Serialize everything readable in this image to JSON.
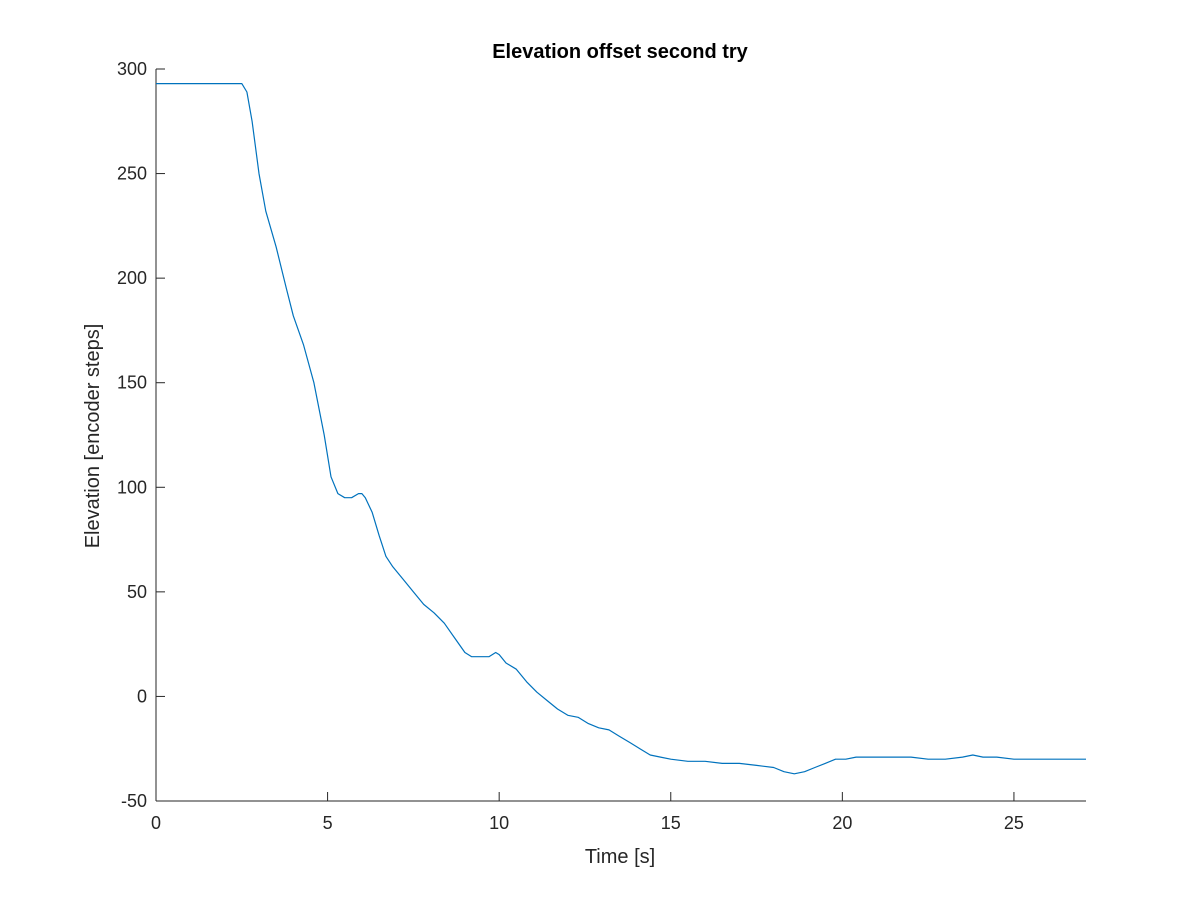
{
  "chart_data": {
    "type": "line",
    "title": "Elevation offset second try",
    "xlabel": "Time [s]",
    "ylabel": "Elevation [encoder steps]",
    "xlim": [
      0,
      27.1
    ],
    "ylim": [
      -50,
      300
    ],
    "xticks": [
      0,
      5,
      10,
      15,
      20,
      25
    ],
    "yticks": [
      -50,
      0,
      50,
      100,
      150,
      200,
      250,
      300
    ],
    "xtick_labels": [
      "0",
      "5",
      "10",
      "15",
      "20",
      "25"
    ],
    "ytick_labels": [
      "-50",
      "0",
      "50",
      "100",
      "150",
      "200",
      "250",
      "300"
    ],
    "grid": false,
    "line_color": "#0072BD",
    "series": [
      {
        "x": [
          0,
          2.5,
          2.65,
          2.8,
          3.0,
          3.2,
          3.5,
          3.8,
          4.0,
          4.3,
          4.6,
          4.9,
          5.1,
          5.3,
          5.5,
          5.7,
          5.9,
          6.0,
          6.1,
          6.3,
          6.5,
          6.7,
          6.9,
          7.2,
          7.5,
          7.8,
          8.1,
          8.4,
          8.7,
          9.0,
          9.2,
          9.5,
          9.7,
          9.9,
          10.0,
          10.2,
          10.5,
          10.8,
          11.1,
          11.4,
          11.7,
          12.0,
          12.3,
          12.6,
          12.9,
          13.2,
          13.5,
          13.8,
          14.1,
          14.4,
          14.7,
          15.0,
          15.5,
          16.0,
          16.5,
          17.0,
          17.5,
          18.0,
          18.3,
          18.6,
          18.9,
          19.2,
          19.5,
          19.8,
          20.1,
          20.4,
          20.7,
          21.0,
          21.3,
          21.6,
          22.0,
          22.5,
          23.0,
          23.5,
          23.8,
          24.1,
          24.5,
          25.0,
          25.5,
          26.0,
          26.5,
          27.1
        ],
        "y": [
          293,
          293,
          289,
          275,
          250,
          232,
          215,
          195,
          182,
          168,
          150,
          125,
          105,
          97,
          95,
          95,
          97,
          97,
          95,
          88,
          77,
          67,
          62,
          56,
          50,
          44,
          40,
          35,
          28,
          21,
          19,
          19,
          19,
          21,
          20,
          16,
          13,
          7,
          2,
          -2,
          -6,
          -9,
          -10,
          -13,
          -15,
          -16,
          -19,
          -22,
          -25,
          -28,
          -29,
          -30,
          -31,
          -31,
          -32,
          -32,
          -33,
          -34,
          -36,
          -37,
          -36,
          -34,
          -32,
          -30,
          -30,
          -29,
          -29,
          -29,
          -29,
          -29,
          -29,
          -30,
          -30,
          -29,
          -28,
          -29,
          -29,
          -30,
          -30,
          -30,
          -30,
          -30
        ]
      }
    ]
  }
}
